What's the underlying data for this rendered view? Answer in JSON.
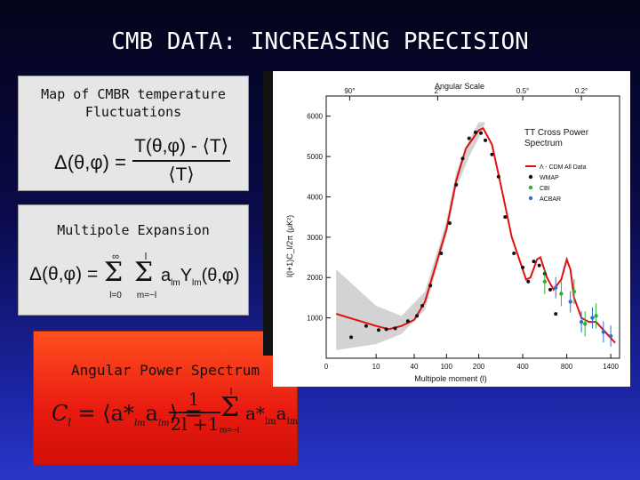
{
  "slide": {
    "title": "CMB DATA: INCREASING PRECISION"
  },
  "boxes": {
    "map": {
      "caption": "Map of CMBR temperature Fluctuations",
      "caption_line1": "Map of CMBR temperature",
      "caption_line2": "Fluctuations",
      "equation_lhs": "Δ(θ,φ) =",
      "equation_num": "T(θ,φ) - ⟨T⟩",
      "equation_den": "⟨T⟩"
    },
    "multipole": {
      "caption": "Multipole Expansion",
      "equation_lhs": "Δ(θ,φ) =",
      "sum_l_top": "∞",
      "sum_l_bottom": "l=0",
      "sum_m_top": "l",
      "sum_m_bottom": "m=−l",
      "term": "a",
      "term_sub": "lm",
      "term2": "Y",
      "term2_sub": "lm",
      "term2_args": "(θ,φ)"
    },
    "power": {
      "caption": "Angular Power Spectrum",
      "lhs": "C",
      "lhs_sub": "l",
      "middle": "= ⟨a*",
      "middle_sub": "lm",
      "middle2": "a",
      "middle2_sub": "lm",
      "middle_close": "⟩ =",
      "frac_num": "1",
      "frac_den": "2l +1",
      "sum_top": "l",
      "sum_bottom": "m=−l",
      "rhs": "a*",
      "rhs_sub": "lm",
      "rhs2": "a",
      "rhs2_sub": "lm"
    }
  },
  "chart_data": {
    "type": "scatter",
    "title": "TT Cross Power Spectrum",
    "top_axis_label": "Angular Scale",
    "top_ticks": [
      "90°",
      "2°",
      "0.5°",
      "0.2°"
    ],
    "xlabel": "Multipole moment (l)",
    "ylabel": "l(l+1)C_l/2π (μK²)",
    "x_ticks": [
      "0",
      "10",
      "40",
      "100",
      "200",
      "400",
      "800",
      "1400"
    ],
    "y_ticks": [
      "1000",
      "2000",
      "3000",
      "4000",
      "5000",
      "6000"
    ],
    "left_ticks": [
      "0"
    ],
    "ylim": [
      0,
      6500
    ],
    "legend": [
      {
        "name": "Λ - CDM All Data",
        "color": "#e01010"
      },
      {
        "name": "WMAP",
        "color": "#111111"
      },
      {
        "name": "CBI",
        "color": "#30b030"
      },
      {
        "name": "ACBAR",
        "color": "#3070d0"
      }
    ],
    "model_curve": [
      [
        2,
        1100
      ],
      [
        10,
        800
      ],
      [
        20,
        720
      ],
      [
        30,
        800
      ],
      [
        40,
        950
      ],
      [
        60,
        1400
      ],
      [
        80,
        2300
      ],
      [
        100,
        3200
      ],
      [
        130,
        4400
      ],
      [
        160,
        5200
      ],
      [
        200,
        5650
      ],
      [
        220,
        5700
      ],
      [
        260,
        5300
      ],
      [
        300,
        4300
      ],
      [
        350,
        3000
      ],
      [
        400,
        2200
      ],
      [
        430,
        1950
      ],
      [
        470,
        2000
      ],
      [
        530,
        2450
      ],
      [
        560,
        2500
      ],
      [
        620,
        2000
      ],
      [
        680,
        1700
      ],
      [
        750,
        1950
      ],
      [
        800,
        2450
      ],
      [
        850,
        2200
      ],
      [
        900,
        1500
      ],
      [
        1000,
        1000
      ],
      [
        1100,
        900
      ],
      [
        1200,
        900
      ],
      [
        1300,
        700
      ],
      [
        1400,
        500
      ],
      [
        1500,
        380
      ]
    ],
    "wmap": [
      [
        5,
        520
      ],
      [
        8,
        800
      ],
      [
        12,
        700
      ],
      [
        18,
        720
      ],
      [
        25,
        740
      ],
      [
        35,
        920
      ],
      [
        45,
        1050
      ],
      [
        55,
        1300
      ],
      [
        70,
        1800
      ],
      [
        90,
        2600
      ],
      [
        110,
        3350
      ],
      [
        130,
        4300
      ],
      [
        150,
        4950
      ],
      [
        170,
        5450
      ],
      [
        190,
        5600
      ],
      [
        210,
        5580
      ],
      [
        230,
        5400
      ],
      [
        260,
        5050
      ],
      [
        290,
        4500
      ],
      [
        320,
        3500
      ],
      [
        360,
        2600
      ],
      [
        400,
        2250
      ],
      [
        450,
        1900
      ],
      [
        500,
        2400
      ],
      [
        550,
        2300
      ],
      [
        600,
        2100
      ],
      [
        650,
        1700
      ],
      [
        700,
        1100
      ]
    ],
    "cbi": [
      [
        600,
        1900
      ],
      [
        750,
        1600
      ],
      [
        900,
        1650
      ],
      [
        1050,
        850
      ],
      [
        1200,
        1050
      ]
    ],
    "acbar": [
      [
        700,
        1750
      ],
      [
        850,
        1400
      ],
      [
        1000,
        900
      ],
      [
        1150,
        1000
      ],
      [
        1300,
        650
      ],
      [
        1400,
        550
      ]
    ]
  }
}
